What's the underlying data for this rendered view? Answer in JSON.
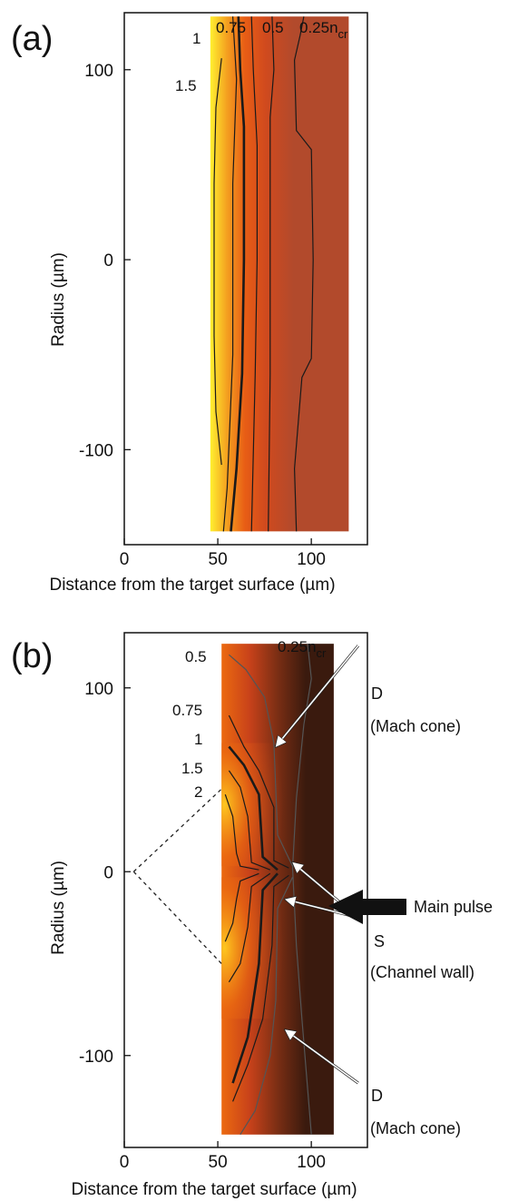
{
  "chart_data": [
    {
      "type": "heatmap",
      "panel_label": "(a)",
      "title": "",
      "xlabel": "Distance from the target surface (µm)",
      "ylabel": "Radius (µm)",
      "xlim": [
        0,
        130
      ],
      "ylim": [
        -150,
        130
      ],
      "x_ticks": [
        0,
        50,
        100
      ],
      "y_ticks": [
        100,
        0,
        -100
      ],
      "data_extent": {
        "x": [
          46,
          120
        ],
        "y": [
          -143,
          128
        ]
      },
      "colormap": [
        "#b24a2c",
        "#d04a1e",
        "#e85d15",
        "#f4a020",
        "#fff030"
      ],
      "contour_labels": [
        {
          "text": "1"
        },
        {
          "text": "0.75"
        },
        {
          "text": "0.5"
        },
        {
          "text": "0.25n",
          "sub": "cr"
        },
        {
          "text": "1.5"
        }
      ],
      "contours": [
        {
          "level": 1.5,
          "bold": false,
          "points": [
            [
              52,
              106
            ],
            [
              49,
              80
            ],
            [
              48,
              40
            ],
            [
              48,
              0
            ],
            [
              48,
              -40
            ],
            [
              49,
              -80
            ],
            [
              52,
              -108
            ]
          ]
        },
        {
          "level": 1.0,
          "bold": true,
          "points": [
            [
              61,
              128
            ],
            [
              62,
              100
            ],
            [
              64,
              70
            ],
            [
              64,
              0
            ],
            [
              63,
              -60
            ],
            [
              60,
              -110
            ],
            [
              57,
              -143
            ]
          ]
        },
        {
          "level": 0.85,
          "bold": false,
          "points": [
            [
              58,
              128
            ],
            [
              60,
              95
            ],
            [
              58,
              40
            ],
            [
              58,
              0
            ],
            [
              58,
              -50
            ],
            [
              55,
              -120
            ],
            [
              53,
              -143
            ]
          ]
        },
        {
          "level": 0.75,
          "bold": false,
          "points": [
            [
              68,
              128
            ],
            [
              69,
              100
            ],
            [
              71,
              60
            ],
            [
              71,
              0
            ],
            [
              70,
              -60
            ],
            [
              68,
              -143
            ]
          ]
        },
        {
          "level": 0.5,
          "bold": false,
          "points": [
            [
              79,
              128
            ],
            [
              80,
              100
            ],
            [
              78,
              75
            ],
            [
              78,
              0
            ],
            [
              78,
              -60
            ],
            [
              77,
              -143
            ]
          ]
        },
        {
          "level": 0.25,
          "bold": false,
          "points": [
            [
              96,
              128
            ],
            [
              94,
              118
            ],
            [
              91,
              105
            ],
            [
              92,
              68
            ],
            [
              100,
              58
            ],
            [
              101,
              0
            ],
            [
              100,
              -52
            ],
            [
              95,
              -62
            ],
            [
              91,
              -110
            ],
            [
              92,
              -143
            ]
          ]
        }
      ]
    },
    {
      "type": "heatmap",
      "panel_label": "(b)",
      "title": "",
      "xlabel": "Distance from the target surface (µm)",
      "ylabel": "Radius (µm)",
      "xlim": [
        0,
        130
      ],
      "ylim": [
        -150,
        130
      ],
      "x_ticks": [
        0,
        50,
        100
      ],
      "y_ticks": [
        100,
        0,
        -100
      ],
      "data_extent": {
        "x": [
          52,
          112
        ],
        "y": [
          -143,
          124
        ]
      },
      "colormap": [
        "#3a1a0e",
        "#7a2e14",
        "#c8421a",
        "#ec6a10",
        "#ffcc20"
      ],
      "contour_labels": [
        {
          "text": "0.25n",
          "sub": "cr"
        },
        {
          "text": "0.5"
        },
        {
          "text": "0.75"
        },
        {
          "text": "1"
        },
        {
          "text": "1.5"
        },
        {
          "text": "2"
        }
      ],
      "contours": [
        {
          "level": 0.25,
          "bold": false,
          "points": [
            [
              98,
              124
            ],
            [
              100,
              105
            ],
            [
              96,
              80
            ],
            [
              92,
              40
            ],
            [
              90,
              2
            ],
            [
              92,
              -40
            ],
            [
              95,
              -80
            ],
            [
              100,
              -143
            ]
          ]
        },
        {
          "level": 0.5,
          "bold": false,
          "points": [
            [
              56,
              118
            ],
            [
              65,
              110
            ],
            [
              75,
              95
            ],
            [
              80,
              70
            ],
            [
              82,
              20
            ],
            [
              90,
              3
            ]
          ]
        },
        {
          "level": 0.5,
          "bold": false,
          "points": [
            [
              90,
              -3
            ],
            [
              82,
              -20
            ],
            [
              81,
              -70
            ],
            [
              78,
              -100
            ],
            [
              70,
              -130
            ],
            [
              62,
              -143
            ]
          ]
        },
        {
          "level": 0.75,
          "bold": false,
          "points": [
            [
              56,
              85
            ],
            [
              64,
              68
            ],
            [
              72,
              55
            ],
            [
              80,
              35
            ],
            [
              80,
              6
            ],
            [
              88,
              2
            ]
          ]
        },
        {
          "level": 0.75,
          "bold": false,
          "points": [
            [
              88,
              -2
            ],
            [
              80,
              -8
            ],
            [
              79,
              -40
            ],
            [
              74,
              -80
            ],
            [
              66,
              -105
            ],
            [
              58,
              -125
            ]
          ]
        },
        {
          "level": 1.0,
          "bold": true,
          "points": [
            [
              56,
              68
            ],
            [
              64,
              58
            ],
            [
              72,
              42
            ],
            [
              74,
              8
            ],
            [
              82,
              1
            ]
          ]
        },
        {
          "level": 1.0,
          "bold": true,
          "points": [
            [
              82,
              -1
            ],
            [
              74,
              -10
            ],
            [
              72,
              -50
            ],
            [
              66,
              -90
            ],
            [
              58,
              -115
            ]
          ]
        },
        {
          "level": 1.5,
          "bold": false,
          "points": [
            [
              56,
              55
            ],
            [
              62,
              46
            ],
            [
              66,
              30
            ],
            [
              68,
              5
            ],
            [
              78,
              1
            ]
          ]
        },
        {
          "level": 1.5,
          "bold": false,
          "points": [
            [
              78,
              -1
            ],
            [
              68,
              -8
            ],
            [
              66,
              -30
            ],
            [
              62,
              -50
            ],
            [
              56,
              -60
            ]
          ]
        },
        {
          "level": 2.0,
          "bold": false,
          "points": [
            [
              54,
              42
            ],
            [
              58,
              30
            ],
            [
              60,
              10
            ],
            [
              62,
              3
            ],
            [
              72,
              1
            ]
          ]
        },
        {
          "level": 2.0,
          "bold": false,
          "points": [
            [
              72,
              -1
            ],
            [
              62,
              -5
            ],
            [
              60,
              -15
            ],
            [
              58,
              -28
            ],
            [
              54,
              -38
            ]
          ]
        }
      ],
      "dashed_lines": [
        {
          "points": [
            [
              5,
              0
            ],
            [
              52,
              45
            ]
          ]
        },
        {
          "points": [
            [
              5,
              0
            ],
            [
              52,
              -50
            ]
          ]
        }
      ],
      "annotations": [
        {
          "label": "D",
          "sublabel": "(Mach cone)",
          "text_at": [
            128,
            123
          ],
          "arrow_to": [
            81,
            68
          ]
        },
        {
          "label": "S",
          "sublabel": "(Channel wall)",
          "text_at": [
            128,
            -25
          ],
          "arrow_to": [
            90,
            5
          ]
        },
        {
          "label": "",
          "sublabel": "",
          "text_at": [
            128,
            -25
          ],
          "arrow_to": [
            86,
            -15
          ]
        },
        {
          "label": "D",
          "sublabel": "(Mach cone)",
          "text_at": [
            128,
            -115
          ],
          "arrow_to": [
            86,
            -86
          ]
        },
        {
          "label": "Main pulse",
          "sublabel": "",
          "text_at": [
            155,
            0
          ],
          "arrow_to": [
            108,
            0
          ]
        }
      ]
    }
  ]
}
